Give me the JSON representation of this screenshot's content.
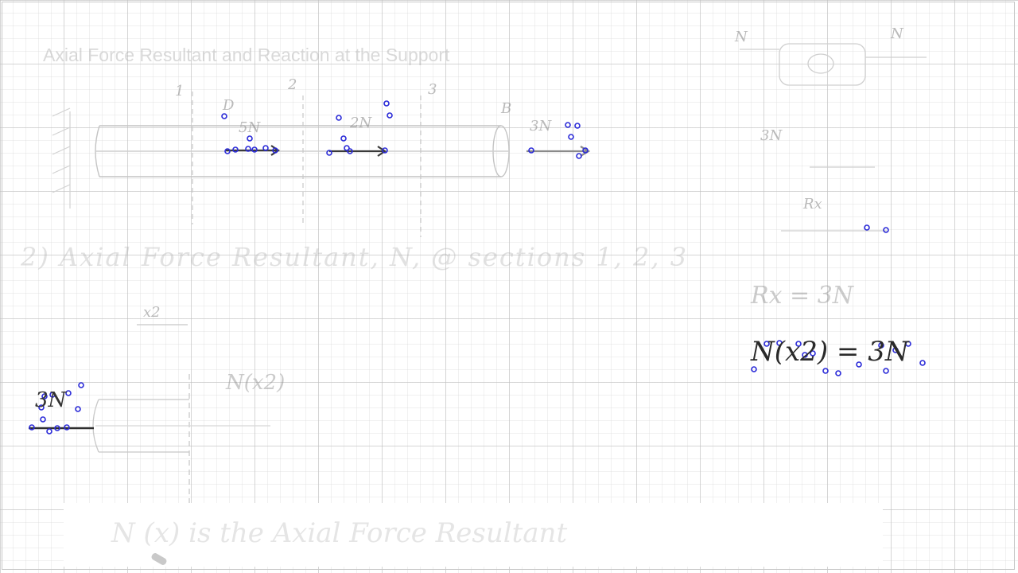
{
  "heading": "Axial Force Resultant and Reaction at the Support",
  "part_title": "2) Axial Force Resultant, N, @ sections 1, 2, 3",
  "beam": {
    "section_1": "1",
    "section_2": "2",
    "section_3": "3",
    "point_d": "D",
    "point_b": "B",
    "load_d": "5N",
    "load_mid": "2N",
    "load_b": "3N"
  },
  "fbd": {
    "n_left": "N",
    "n_right": "N",
    "force_3n": "3N",
    "reaction": "Rx"
  },
  "equations": {
    "rx": "Rx = 3N",
    "n_x2": "N(x2) = 3N"
  },
  "section_sketch": {
    "x_label": "x2",
    "applied": "3N",
    "n_label": "N(x2)"
  },
  "caption": "N (x) is the Axial Force Resultant"
}
